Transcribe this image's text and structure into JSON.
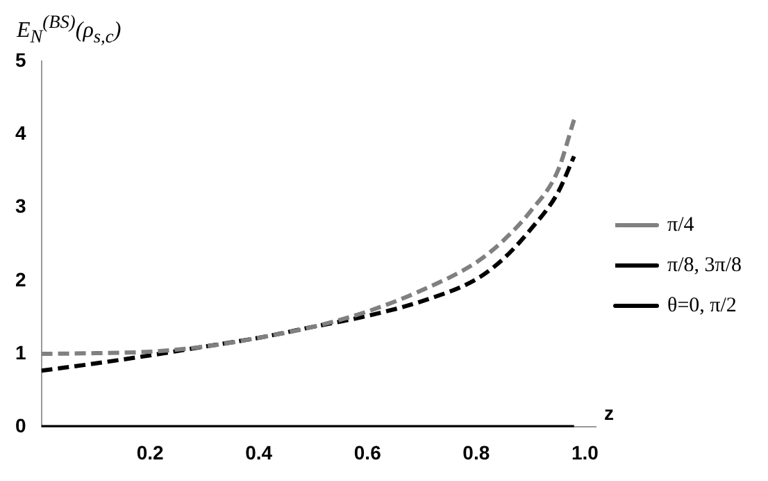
{
  "chart_data": {
    "type": "line",
    "ylabel": "E$_{N}$$^{(BS)}$(ρ$_{s,c}$)",
    "xlabel": "z",
    "xlim": [
      0,
      1.02
    ],
    "xticks": [
      0.2,
      0.4,
      0.6,
      0.8,
      {
        "value": 1,
        "label": "1.0"
      }
    ],
    "ylim": [
      0,
      5
    ],
    "yticks": [
      0,
      1,
      2,
      3,
      4,
      5
    ],
    "grid": false,
    "legend": "right",
    "marker": "none",
    "series": [
      {
        "name": "π/4",
        "color": "#808080",
        "line_style": "dashed",
        "x": [
          0,
          0.1,
          0.2,
          0.3,
          0.4,
          0.5,
          0.6,
          0.7,
          0.8,
          0.85,
          0.9,
          0.95,
          0.98
        ],
        "values": [
          1.0,
          1.01,
          1.03,
          1.1,
          1.22,
          1.37,
          1.58,
          1.87,
          2.25,
          2.55,
          2.95,
          3.5,
          4.2
        ]
      },
      {
        "name": "π/8, 3π/8",
        "color": "#000000",
        "line_style": "dashed",
        "x": [
          0,
          0.1,
          0.2,
          0.3,
          0.4,
          0.5,
          0.6,
          0.7,
          0.8,
          0.85,
          0.9,
          0.95,
          0.98
        ],
        "values": [
          0.77,
          0.87,
          0.98,
          1.1,
          1.22,
          1.37,
          1.52,
          1.72,
          2.02,
          2.3,
          2.7,
          3.2,
          3.7
        ]
      },
      {
        "name": "θ=0, π/2",
        "color": "#000000",
        "line_style": "solid",
        "x": [
          0,
          0.98
        ],
        "values": [
          0,
          0
        ]
      }
    ]
  }
}
